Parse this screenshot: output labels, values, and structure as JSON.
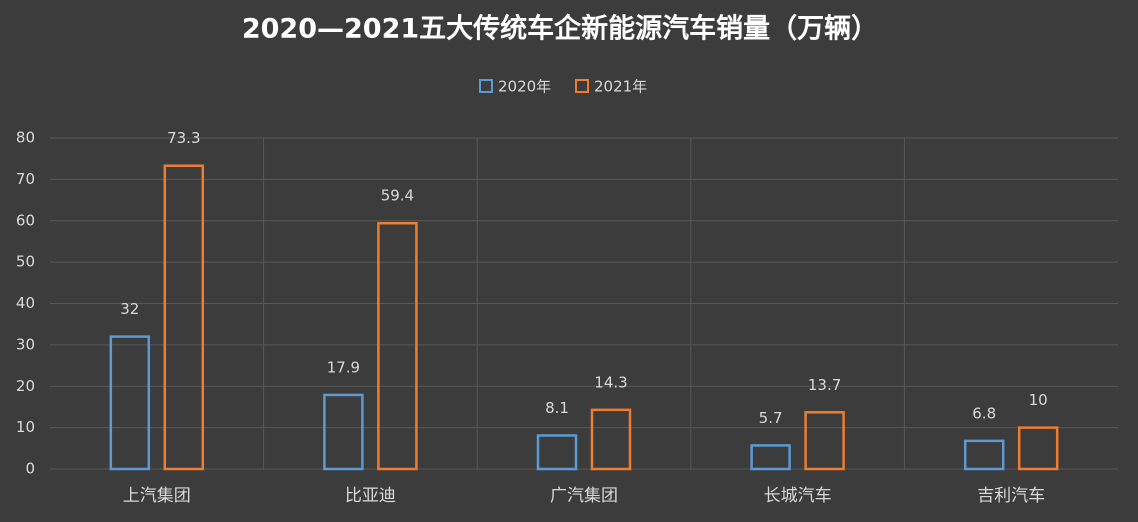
{
  "chart_data": {
    "type": "bar",
    "title": "2020—2021五大传统车企新能源汽车销量（万辆）",
    "categories": [
      "上汽集团",
      "比亚迪",
      "广汽集团",
      "长城汽车",
      "吉利汽车"
    ],
    "series": [
      {
        "name": "2020年",
        "color": "#5b9bd5",
        "values": [
          32,
          17.9,
          8.1,
          5.7,
          6.8
        ]
      },
      {
        "name": "2021年",
        "color": "#ed7d31",
        "values": [
          73.3,
          59.4,
          14.3,
          13.7,
          10
        ]
      }
    ],
    "ylim": [
      0,
      80
    ],
    "yticks": [
      0,
      10,
      20,
      30,
      40,
      50,
      60,
      70,
      80
    ],
    "grid": true,
    "legend": "top"
  }
}
